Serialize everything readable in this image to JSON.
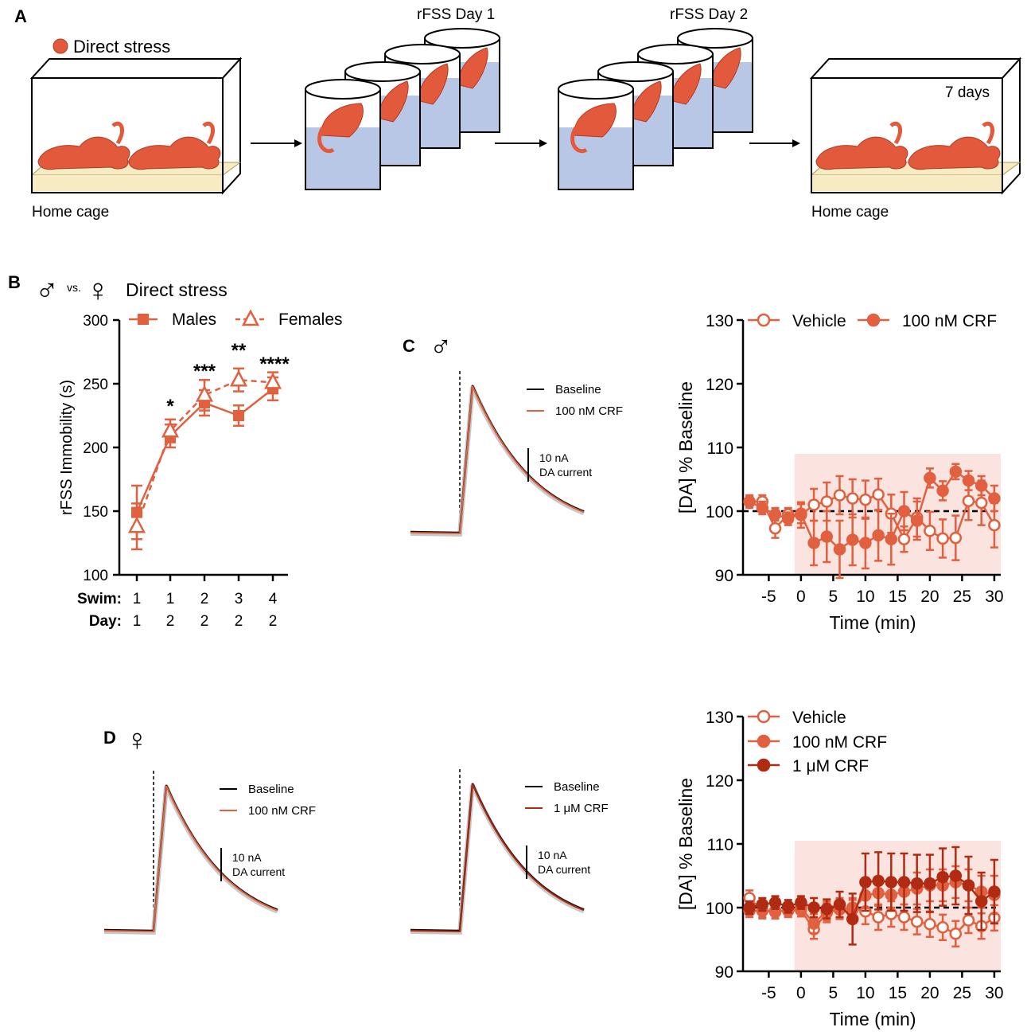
{
  "panel_labels": {
    "a": "A",
    "b": "B",
    "c": "C",
    "d": "D"
  },
  "panelA": {
    "legend_label": "Direct stress",
    "home_cage_left": "Home cage",
    "day1_title": "rFSS Day 1",
    "day2_title": "rFSS Day 2",
    "home_cage_right": "Home cage",
    "days_label": "7 days"
  },
  "panelB": {
    "title_prefix": "vs.",
    "title": "Direct stress",
    "male_symbol": "♂",
    "female_symbol": "♀"
  },
  "panelC": {
    "sex_symbol": "♂"
  },
  "panelD": {
    "sex_symbol": "♀"
  },
  "colors": {
    "male": "#e0603f",
    "vehicle": "#e0603f",
    "crf100": "#e0603f",
    "crf1u": "#b12a12",
    "shade": "#fbe3e0"
  },
  "chart_data": [
    {
      "id": "B-immobility",
      "type": "line",
      "ylabel": "rFSS Immobility (s)",
      "ylim": [
        100,
        300
      ],
      "yticks": [
        100,
        150,
        200,
        250,
        300
      ],
      "row_labels": [
        "Swim:",
        "Day:"
      ],
      "swim": [
        "1",
        "1",
        "2",
        "3",
        "4"
      ],
      "day": [
        "1",
        "2",
        "2",
        "2",
        "2"
      ],
      "series": [
        {
          "name": "Males",
          "values": [
            149,
            209,
            235,
            225,
            246
          ],
          "err": [
            21,
            9,
            10,
            8,
            9
          ],
          "marker": "square",
          "dash": false
        },
        {
          "name": "Females",
          "values": [
            138,
            213,
            241,
            253,
            251
          ],
          "err": [
            18,
            9,
            12,
            9,
            8
          ],
          "marker": "triangle",
          "dash": true
        }
      ],
      "significance": [
        "",
        "*",
        "***",
        "**",
        "****"
      ]
    },
    {
      "id": "C-trace",
      "type": "line",
      "series": [
        {
          "name": "Baseline"
        },
        {
          "name": "100 nM CRF"
        }
      ],
      "scale_bar": "10 nA",
      "scale_bar_unit": "DA current"
    },
    {
      "id": "C-timecourse",
      "type": "line",
      "xlabel": "Time (min)",
      "ylabel": "[DA] % Baseline",
      "xlim": [
        -9,
        31
      ],
      "ylim": [
        90,
        130
      ],
      "xticks": [
        -5,
        0,
        5,
        10,
        15,
        20,
        25,
        30
      ],
      "yticks": [
        90,
        100,
        110,
        120,
        130
      ],
      "shade_x": [
        -1,
        31
      ],
      "shade_y": [
        90,
        109
      ],
      "x": [
        -8,
        -6,
        -4,
        -2,
        0,
        2,
        4,
        6,
        8,
        10,
        12,
        14,
        16,
        18,
        20,
        22,
        24,
        26,
        28,
        30
      ],
      "series": [
        {
          "name": "Vehicle",
          "filled": false,
          "values": [
            101.5,
            101.5,
            97.3,
            99.5,
            99.4,
            101,
            101.5,
            102.5,
            102,
            101.8,
            102.6,
            99.6,
            95.6,
            99,
            96.9,
            95.7,
            95.8,
            101.6,
            101.3,
            97.8
          ],
          "err": [
            1,
            1,
            1.5,
            1,
            2,
            2.5,
            3,
            3,
            3,
            3,
            2.5,
            3,
            2,
            3,
            3,
            3,
            3.5,
            3,
            3.5,
            3.5
          ]
        },
        {
          "name": "100 nM CRF",
          "filled": true,
          "values": [
            101.5,
            100.5,
            99.5,
            98.8,
            99.6,
            95,
            96,
            94,
            95.5,
            95,
            96.2,
            95.6,
            100,
            98.5,
            105.2,
            103.2,
            106.2,
            104.8,
            104,
            102
          ],
          "err": [
            0.8,
            1,
            1,
            1,
            1.5,
            3.5,
            4,
            4.5,
            4,
            4,
            4,
            4,
            3,
            3,
            1.5,
            1.5,
            1.2,
            1.5,
            1.5,
            2
          ]
        }
      ]
    },
    {
      "id": "D-trace-100nM",
      "type": "line",
      "series": [
        {
          "name": "Baseline"
        },
        {
          "name": "100 nM CRF"
        }
      ],
      "scale_bar": "10 nA",
      "scale_bar_unit": "DA current"
    },
    {
      "id": "D-trace-1uM",
      "type": "line",
      "series": [
        {
          "name": "Baseline"
        },
        {
          "name": "1 μM CRF"
        }
      ],
      "scale_bar": "10 nA",
      "scale_bar_unit": "DA current"
    },
    {
      "id": "D-timecourse",
      "type": "line",
      "xlabel": "Time (min)",
      "ylabel": "[DA] % Baseline",
      "xlim": [
        -9,
        31
      ],
      "ylim": [
        90,
        130
      ],
      "xticks": [
        -5,
        0,
        5,
        10,
        15,
        20,
        25,
        30
      ],
      "yticks": [
        90,
        100,
        110,
        120,
        130
      ],
      "shade_x": [
        -1,
        31
      ],
      "shade_y": [
        90,
        110.5
      ],
      "x": [
        -8,
        -6,
        -4,
        -2,
        0,
        2,
        4,
        6,
        8,
        10,
        12,
        14,
        16,
        18,
        20,
        22,
        24,
        26,
        28,
        30
      ],
      "series": [
        {
          "name": "Vehicle",
          "filled": false,
          "values": [
            101.5,
            99.5,
            99.5,
            99.5,
            99.6,
            96.6,
            99.2,
            99.7,
            100,
            99.4,
            98.5,
            99,
            98.5,
            97.8,
            97.4,
            96.9,
            95.9,
            98,
            97.1,
            98.4
          ],
          "err": [
            1.2,
            1.2,
            1.2,
            1,
            1,
            1.5,
            1.5,
            1.5,
            1.5,
            2,
            2,
            2,
            2,
            2,
            2,
            2,
            2,
            2,
            2,
            2
          ]
        },
        {
          "name": "100 nM CRF",
          "filled": true,
          "values": [
            99.5,
            99.5,
            99.3,
            99.6,
            100,
            97.5,
            99.5,
            100,
            99.7,
            101.9,
            102.3,
            102,
            102.5,
            103,
            103.5,
            103.5,
            104,
            103.5,
            102.5,
            102
          ],
          "err": [
            1,
            1,
            1,
            1,
            1,
            1.5,
            1.5,
            1.5,
            1.5,
            2,
            2,
            2,
            2,
            2.5,
            2.5,
            2.5,
            2.5,
            2.5,
            2.5,
            3
          ]
        },
        {
          "name": "1 μM CRF",
          "filled": true,
          "dark": true,
          "values": [
            100,
            100.5,
            100.8,
            100.2,
            100.8,
            100,
            99.8,
            100.5,
            98.2,
            104,
            104.2,
            104,
            104,
            103.8,
            103.8,
            104.8,
            105,
            103.5,
            101,
            102.5
          ],
          "err": [
            1,
            1,
            1,
            1,
            1,
            1.5,
            1.5,
            2,
            4,
            4.5,
            4.5,
            4.5,
            4.5,
            4.5,
            4.5,
            4.5,
            4.5,
            4.5,
            4.5,
            5
          ]
        }
      ]
    }
  ]
}
